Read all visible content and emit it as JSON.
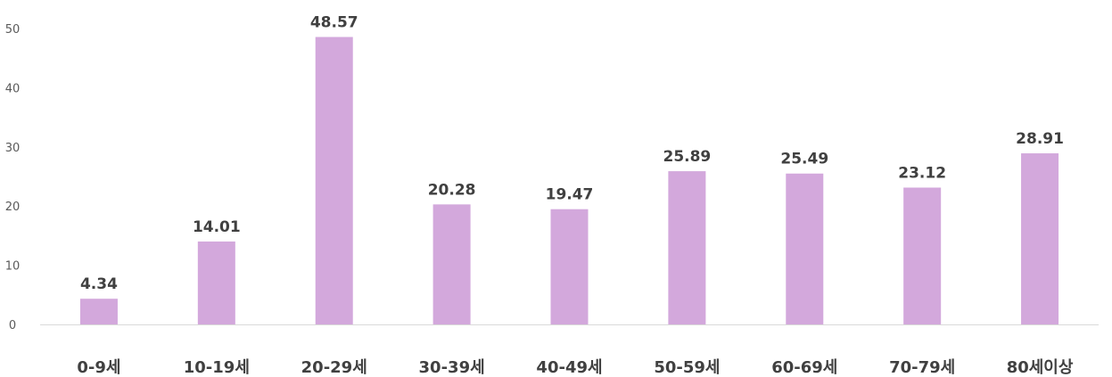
{
  "chart_data": {
    "type": "bar",
    "categories": [
      "0-9세",
      "10-19세",
      "20-29세",
      "30-39세",
      "40-49세",
      "50-59세",
      "60-69세",
      "70-79세",
      "80세이상"
    ],
    "values": [
      4.34,
      14.01,
      48.57,
      20.28,
      19.47,
      25.89,
      25.49,
      23.12,
      28.91
    ],
    "value_labels": [
      "4.34",
      "14.01",
      "48.57",
      "20.28",
      "19.47",
      "25.89",
      "25.49",
      "23.12",
      "28.91"
    ],
    "ylim": [
      0,
      50
    ],
    "yticks": [
      0,
      10,
      20,
      30,
      40,
      50
    ],
    "grid": false,
    "legend": "none",
    "bar_color": "#d3a8dc",
    "axis_color": "#d9d9d9"
  }
}
